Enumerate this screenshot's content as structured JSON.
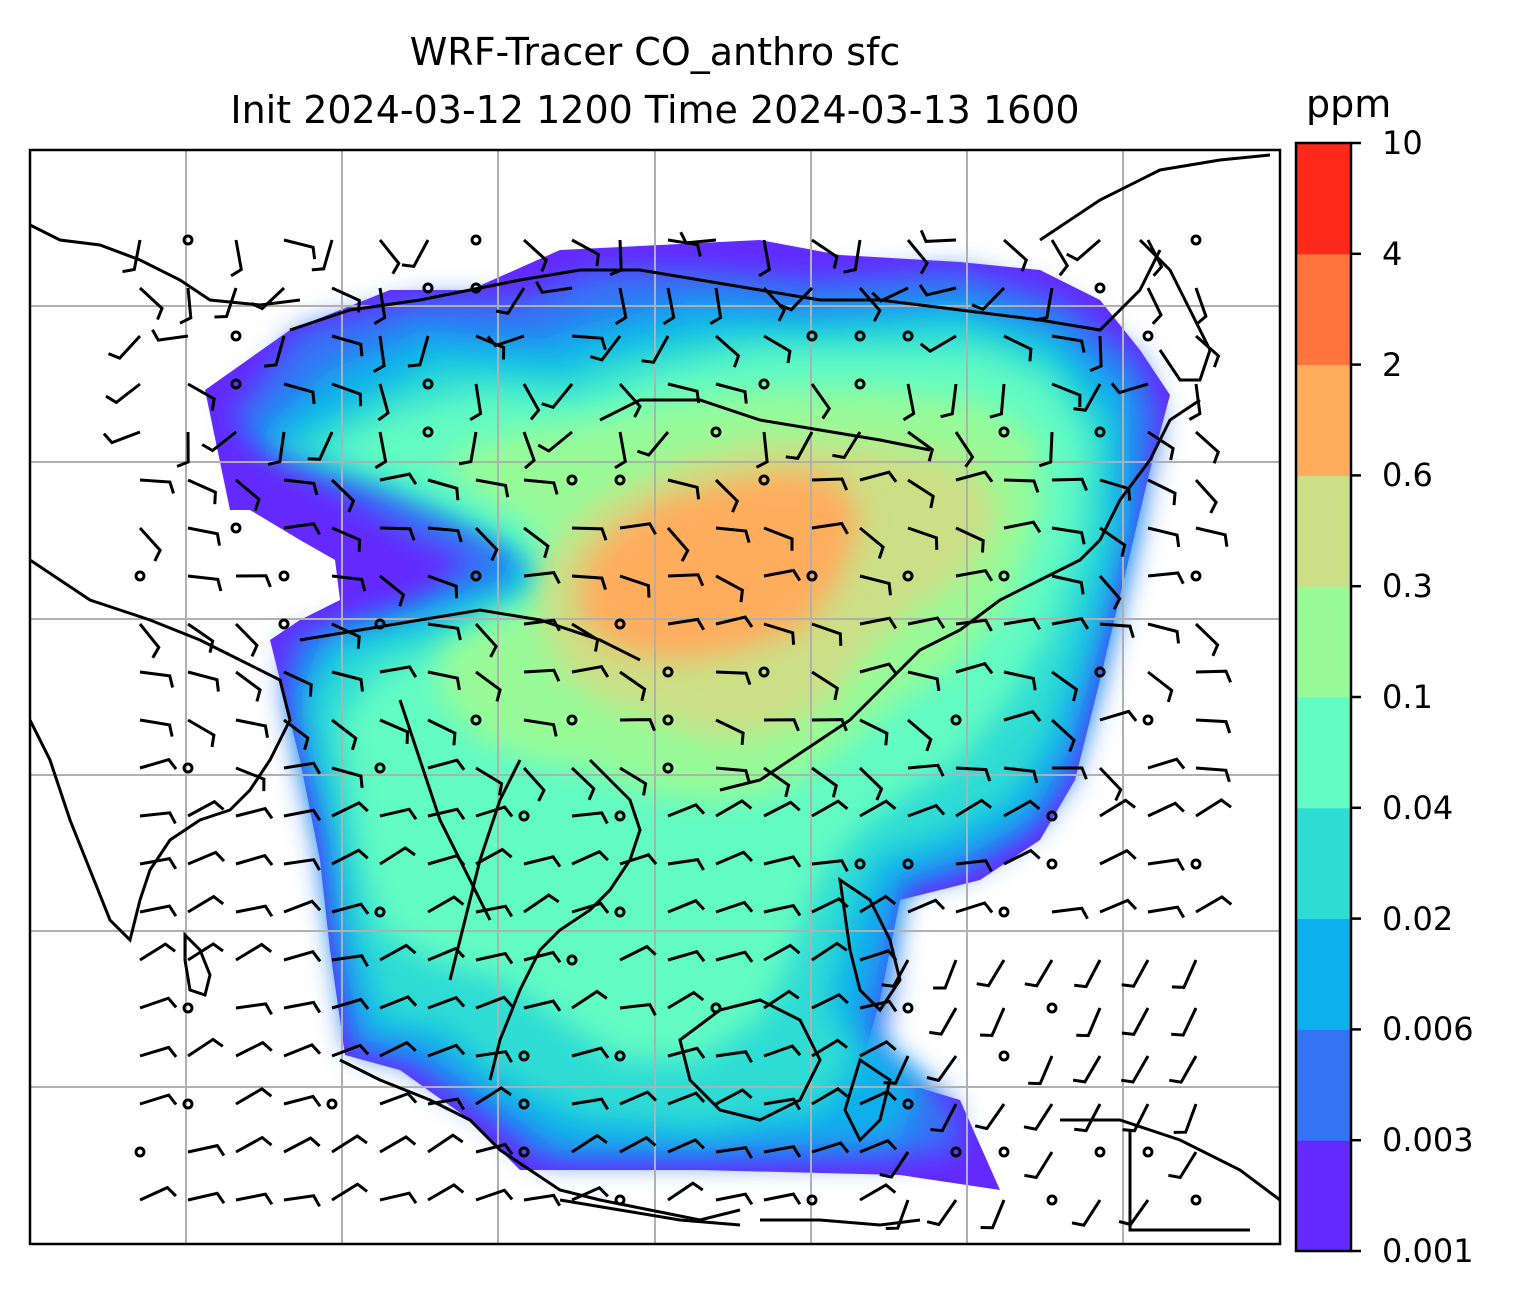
{
  "title": {
    "line1": "WRF-Tracer CO_anthro sfc",
    "line2": "Init 2024-03-12 1200 Time 2024-03-13 1600"
  },
  "colorbar": {
    "unit": "ppm",
    "levels": [
      "0.001",
      "0.003",
      "0.006",
      "0.02",
      "0.04",
      "0.1",
      "0.3",
      "0.6",
      "2",
      "4",
      "10"
    ],
    "colors": [
      "#6429ff",
      "#3474f4",
      "#0bb0ec",
      "#2edcd4",
      "#62fbc3",
      "#98fb98",
      "#ccdf86",
      "#ffad5d",
      "#ff733d",
      "#ff291b"
    ]
  },
  "map": {
    "gridlines": true,
    "coastline_color": "#000000",
    "grid_color": "#b0b0b0"
  },
  "chart_data": {
    "type": "heatmap",
    "variable": "CO_anthro sfc",
    "overlay": "wind barbs",
    "legend": "colorbar-right"
  }
}
